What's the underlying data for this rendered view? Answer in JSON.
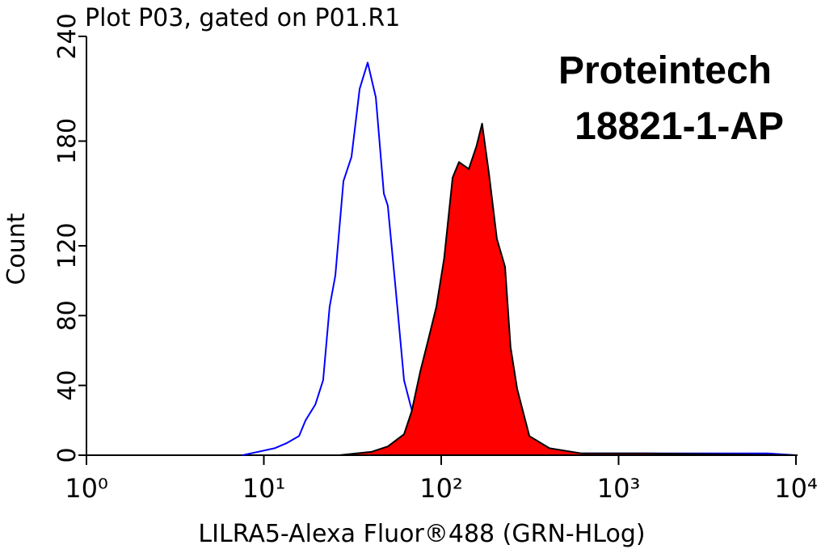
{
  "chart_data": {
    "type": "histogram-overlay",
    "title": "Plot P03, gated on P01.R1",
    "annotations": [
      "Proteintech",
      "18821-1-AP"
    ],
    "xlabel": "LILRA5-Alexa Fluor®488 (GRN-HLog)",
    "ylabel": "Count",
    "xscale": "log",
    "xlim": [
      1,
      10000
    ],
    "xticks": [
      {
        "value": 1,
        "label": "10⁰"
      },
      {
        "value": 10,
        "label": "10¹"
      },
      {
        "value": 100,
        "label": "10²"
      },
      {
        "value": 1000,
        "label": "10³"
      },
      {
        "value": 10000,
        "label": "10⁴"
      }
    ],
    "ylim": [
      0,
      240
    ],
    "yticks": [
      0,
      40,
      80,
      120,
      180,
      240
    ],
    "series": [
      {
        "color": "#0000ff",
        "fill": false,
        "x": [
          7.57,
          9.34,
          11.5,
          13.5,
          15.8,
          17.2,
          19.5,
          21.6,
          23.5,
          25.3,
          28.1,
          31.2,
          34.7,
          38.5,
          42.8,
          47.5,
          50.0,
          55.5,
          61.7,
          67.0,
          76.2,
          93.9,
          143,
          298,
          850,
          2427,
          6918,
          10000
        ],
        "values": [
          0,
          2,
          4,
          7,
          11,
          20,
          29,
          43,
          85,
          103,
          157,
          171,
          210,
          225,
          205,
          150,
          143,
          94,
          43,
          29,
          8,
          3,
          1,
          1,
          1,
          1,
          1,
          0
        ]
      },
      {
        "color": "#ff0000",
        "edgecolor": "#000000",
        "fill": true,
        "x": [
          26.6,
          40.6,
          50.0,
          61.7,
          68.1,
          76.2,
          84.5,
          93.9,
          104,
          116,
          126,
          143,
          158,
          170,
          186,
          206,
          229,
          246,
          268,
          314,
          408,
          621,
          1435,
          10000
        ],
        "values": [
          0,
          2,
          5,
          12,
          25,
          48,
          66,
          85,
          113,
          159,
          168,
          164,
          177,
          190,
          161,
          124,
          108,
          62,
          38,
          11,
          4,
          1,
          1,
          0
        ]
      }
    ]
  }
}
